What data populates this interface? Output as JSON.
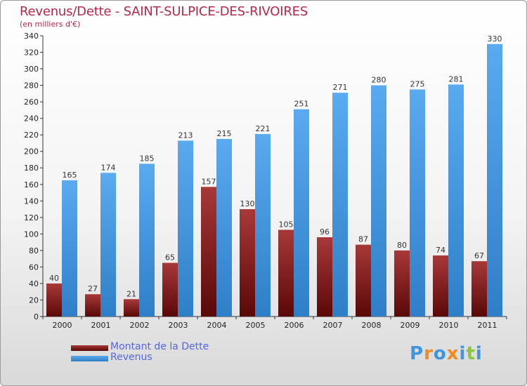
{
  "title": "Revenus/Dette - SAINT-SULPICE-DES-RIVOIRES",
  "subtitle": "(en milliers d'€)",
  "chart_data": {
    "type": "bar",
    "categories": [
      "2000",
      "2001",
      "2002",
      "2003",
      "2004",
      "2005",
      "2006",
      "2007",
      "2008",
      "2009",
      "2010",
      "2011"
    ],
    "series": [
      {
        "name": "Montant de la Dette",
        "color": "#7a1414",
        "values": [
          40,
          27,
          21,
          65,
          157,
          130,
          105,
          96,
          87,
          80,
          74,
          67
        ]
      },
      {
        "name": "Revenus",
        "color": "#3f95de",
        "values": [
          165,
          174,
          185,
          213,
          215,
          221,
          251,
          271,
          280,
          275,
          281,
          330
        ]
      }
    ],
    "yticks": [
      0,
      20,
      40,
      60,
      80,
      100,
      120,
      140,
      160,
      180,
      200,
      220,
      240,
      260,
      280,
      300,
      320,
      340
    ],
    "ylim": [
      0,
      340
    ],
    "grid": false,
    "legend_position": "bottom-left"
  },
  "logo": {
    "text": "Proxiti",
    "colors": [
      "#3f95de",
      "#f08a24",
      "#3f95de",
      "#f08a24",
      "#3f95de",
      "#8bc34a",
      "#3f95de"
    ]
  }
}
